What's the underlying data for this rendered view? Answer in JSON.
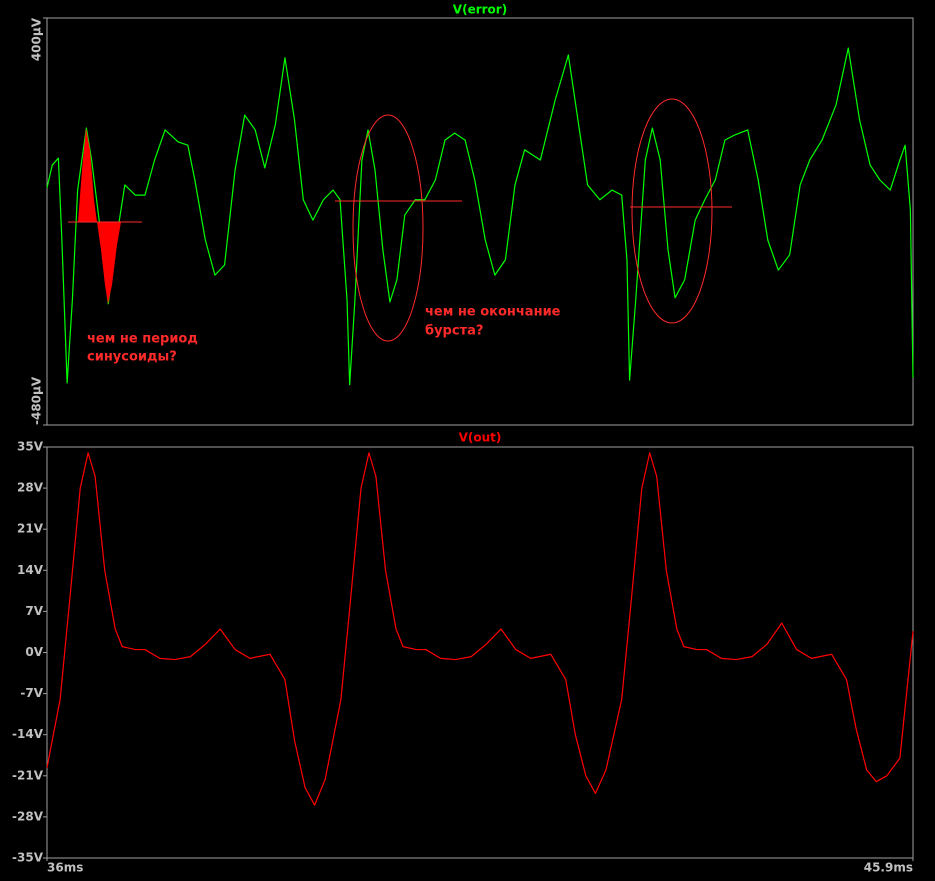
{
  "chart_data": [
    {
      "type": "line",
      "title": "V(error)",
      "xlim": [
        36,
        45.9
      ],
      "ylim": [
        -480,
        400
      ],
      "yticks": [
        {
          "value": 400,
          "label": "400µV"
        },
        {
          "value": -480,
          "label": "-480µV"
        }
      ],
      "annotations": [
        [
          "чем не период",
          "синусоиды?"
        ],
        [
          "чем не окончание",
          "бурста?"
        ]
      ],
      "x": [
        36.0,
        36.06,
        36.13,
        36.17,
        36.23,
        36.29,
        36.35,
        36.45,
        36.51,
        36.61,
        36.7,
        36.81,
        36.89,
        37.01,
        37.12,
        37.23,
        37.35,
        37.5,
        37.61,
        37.69,
        37.81,
        37.92,
        38.03,
        38.15,
        38.26,
        38.38,
        38.49,
        38.61,
        38.72,
        38.83,
        38.93,
        39.04,
        39.16,
        39.27,
        39.35,
        39.43,
        39.46,
        39.52,
        39.6,
        39.67,
        39.75,
        39.84,
        39.92,
        40.0,
        40.09,
        40.21,
        40.32,
        40.44,
        40.55,
        40.66,
        40.78,
        40.89,
        41.01,
        41.12,
        41.24,
        41.35,
        41.46,
        41.64,
        41.81,
        41.96,
        42.07,
        42.18,
        42.32,
        42.46,
        42.57,
        42.63,
        42.66,
        42.73,
        42.84,
        42.92,
        43.01,
        43.1,
        43.18,
        43.29,
        43.41,
        43.52,
        43.64,
        43.75,
        43.86,
        44.01,
        44.13,
        44.24,
        44.36,
        44.49,
        44.61,
        44.72,
        44.86,
        45.02,
        45.16,
        45.29,
        45.41,
        45.52,
        45.64,
        45.75,
        45.81,
        45.87,
        45.9
      ],
      "series": [
        {
          "color": "#00ff00",
          "values": [
            33,
            82,
            97,
            -80,
            -389,
            -210,
            28,
            162,
            93,
            -58,
            -218,
            -58,
            39,
            17,
            17,
            93,
            158,
            132,
            125,
            50,
            -80,
            -156,
            -134,
            71,
            190,
            158,
            76,
            169,
            314,
            179,
            7,
            -37,
            7,
            28,
            7,
            -210,
            -393,
            -210,
            93,
            158,
            71,
            -102,
            -214,
            -166,
            -26,
            7,
            7,
            50,
            136,
            151,
            136,
            50,
            -80,
            -156,
            -123,
            39,
            115,
            93,
            223,
            320,
            179,
            39,
            7,
            28,
            17,
            -123,
            -383,
            -210,
            93,
            162,
            93,
            -102,
            -205,
            -166,
            -37,
            7,
            50,
            136,
            147,
            158,
            50,
            -80,
            -145,
            -112,
            39,
            93,
            136,
            212,
            335,
            179,
            82,
            50,
            28,
            93,
            125,
            -15,
            -378
          ]
        }
      ]
    },
    {
      "type": "line",
      "title": "V(out)",
      "xlim": [
        36,
        45.9
      ],
      "ylim": [
        -35,
        35
      ],
      "xticks": [
        {
          "value": 36,
          "label": "36ms"
        },
        {
          "value": 45.9,
          "label": "45.9ms"
        }
      ],
      "yticks": [
        {
          "value": 35,
          "label": "35V"
        },
        {
          "value": 28,
          "label": "28V"
        },
        {
          "value": 21,
          "label": "21V"
        },
        {
          "value": 14,
          "label": "14V"
        },
        {
          "value": 7,
          "label": "7V"
        },
        {
          "value": 0,
          "label": "0V"
        },
        {
          "value": -7,
          "label": "-7V"
        },
        {
          "value": -14,
          "label": "-14V"
        },
        {
          "value": -21,
          "label": "-21V"
        },
        {
          "value": -28,
          "label": "-28V"
        },
        {
          "value": -35,
          "label": "-35V"
        }
      ],
      "x": [
        36.0,
        36.15,
        36.26,
        36.38,
        36.47,
        36.55,
        36.66,
        36.78,
        36.86,
        37.01,
        37.12,
        37.29,
        37.46,
        37.64,
        37.81,
        37.98,
        38.15,
        38.32,
        38.55,
        38.72,
        38.83,
        38.95,
        39.06,
        39.18,
        39.36,
        39.47,
        39.59,
        39.68,
        39.76,
        39.87,
        39.99,
        40.07,
        40.22,
        40.33,
        40.5,
        40.67,
        40.85,
        41.02,
        41.19,
        41.36,
        41.53,
        41.76,
        41.93,
        42.04,
        42.16,
        42.27,
        42.39,
        42.57,
        42.68,
        42.8,
        42.89,
        42.97,
        43.08,
        43.2,
        43.28,
        43.43,
        43.54,
        43.71,
        43.88,
        44.06,
        44.23,
        44.4,
        44.57,
        44.74,
        44.97,
        45.14,
        45.25,
        45.37,
        45.48,
        45.6,
        45.75,
        45.9
      ],
      "series": [
        {
          "color": "#ff0000",
          "values": [
            -19.6,
            -8,
            9,
            28,
            34,
            30,
            14,
            4,
            1,
            0.5,
            0.5,
            -1,
            -1.2,
            -0.7,
            1.4,
            4,
            0.5,
            -1,
            -0.3,
            -4.6,
            -15,
            -23,
            -26,
            -21.6,
            -8,
            9,
            28,
            34,
            30,
            14,
            4,
            1,
            0.5,
            0.5,
            -1,
            -1.2,
            -0.7,
            1.4,
            4,
            0.5,
            -1,
            -0.3,
            -4.6,
            -14,
            -21,
            -24,
            -20,
            -8,
            9,
            28,
            34,
            30,
            14,
            4,
            1,
            0.5,
            0.5,
            -1,
            -1.2,
            -0.7,
            1.4,
            5,
            0.5,
            -1,
            -0.3,
            -4.6,
            -13,
            -20,
            -22,
            -21,
            -18,
            3.6
          ]
        }
      ]
    }
  ]
}
